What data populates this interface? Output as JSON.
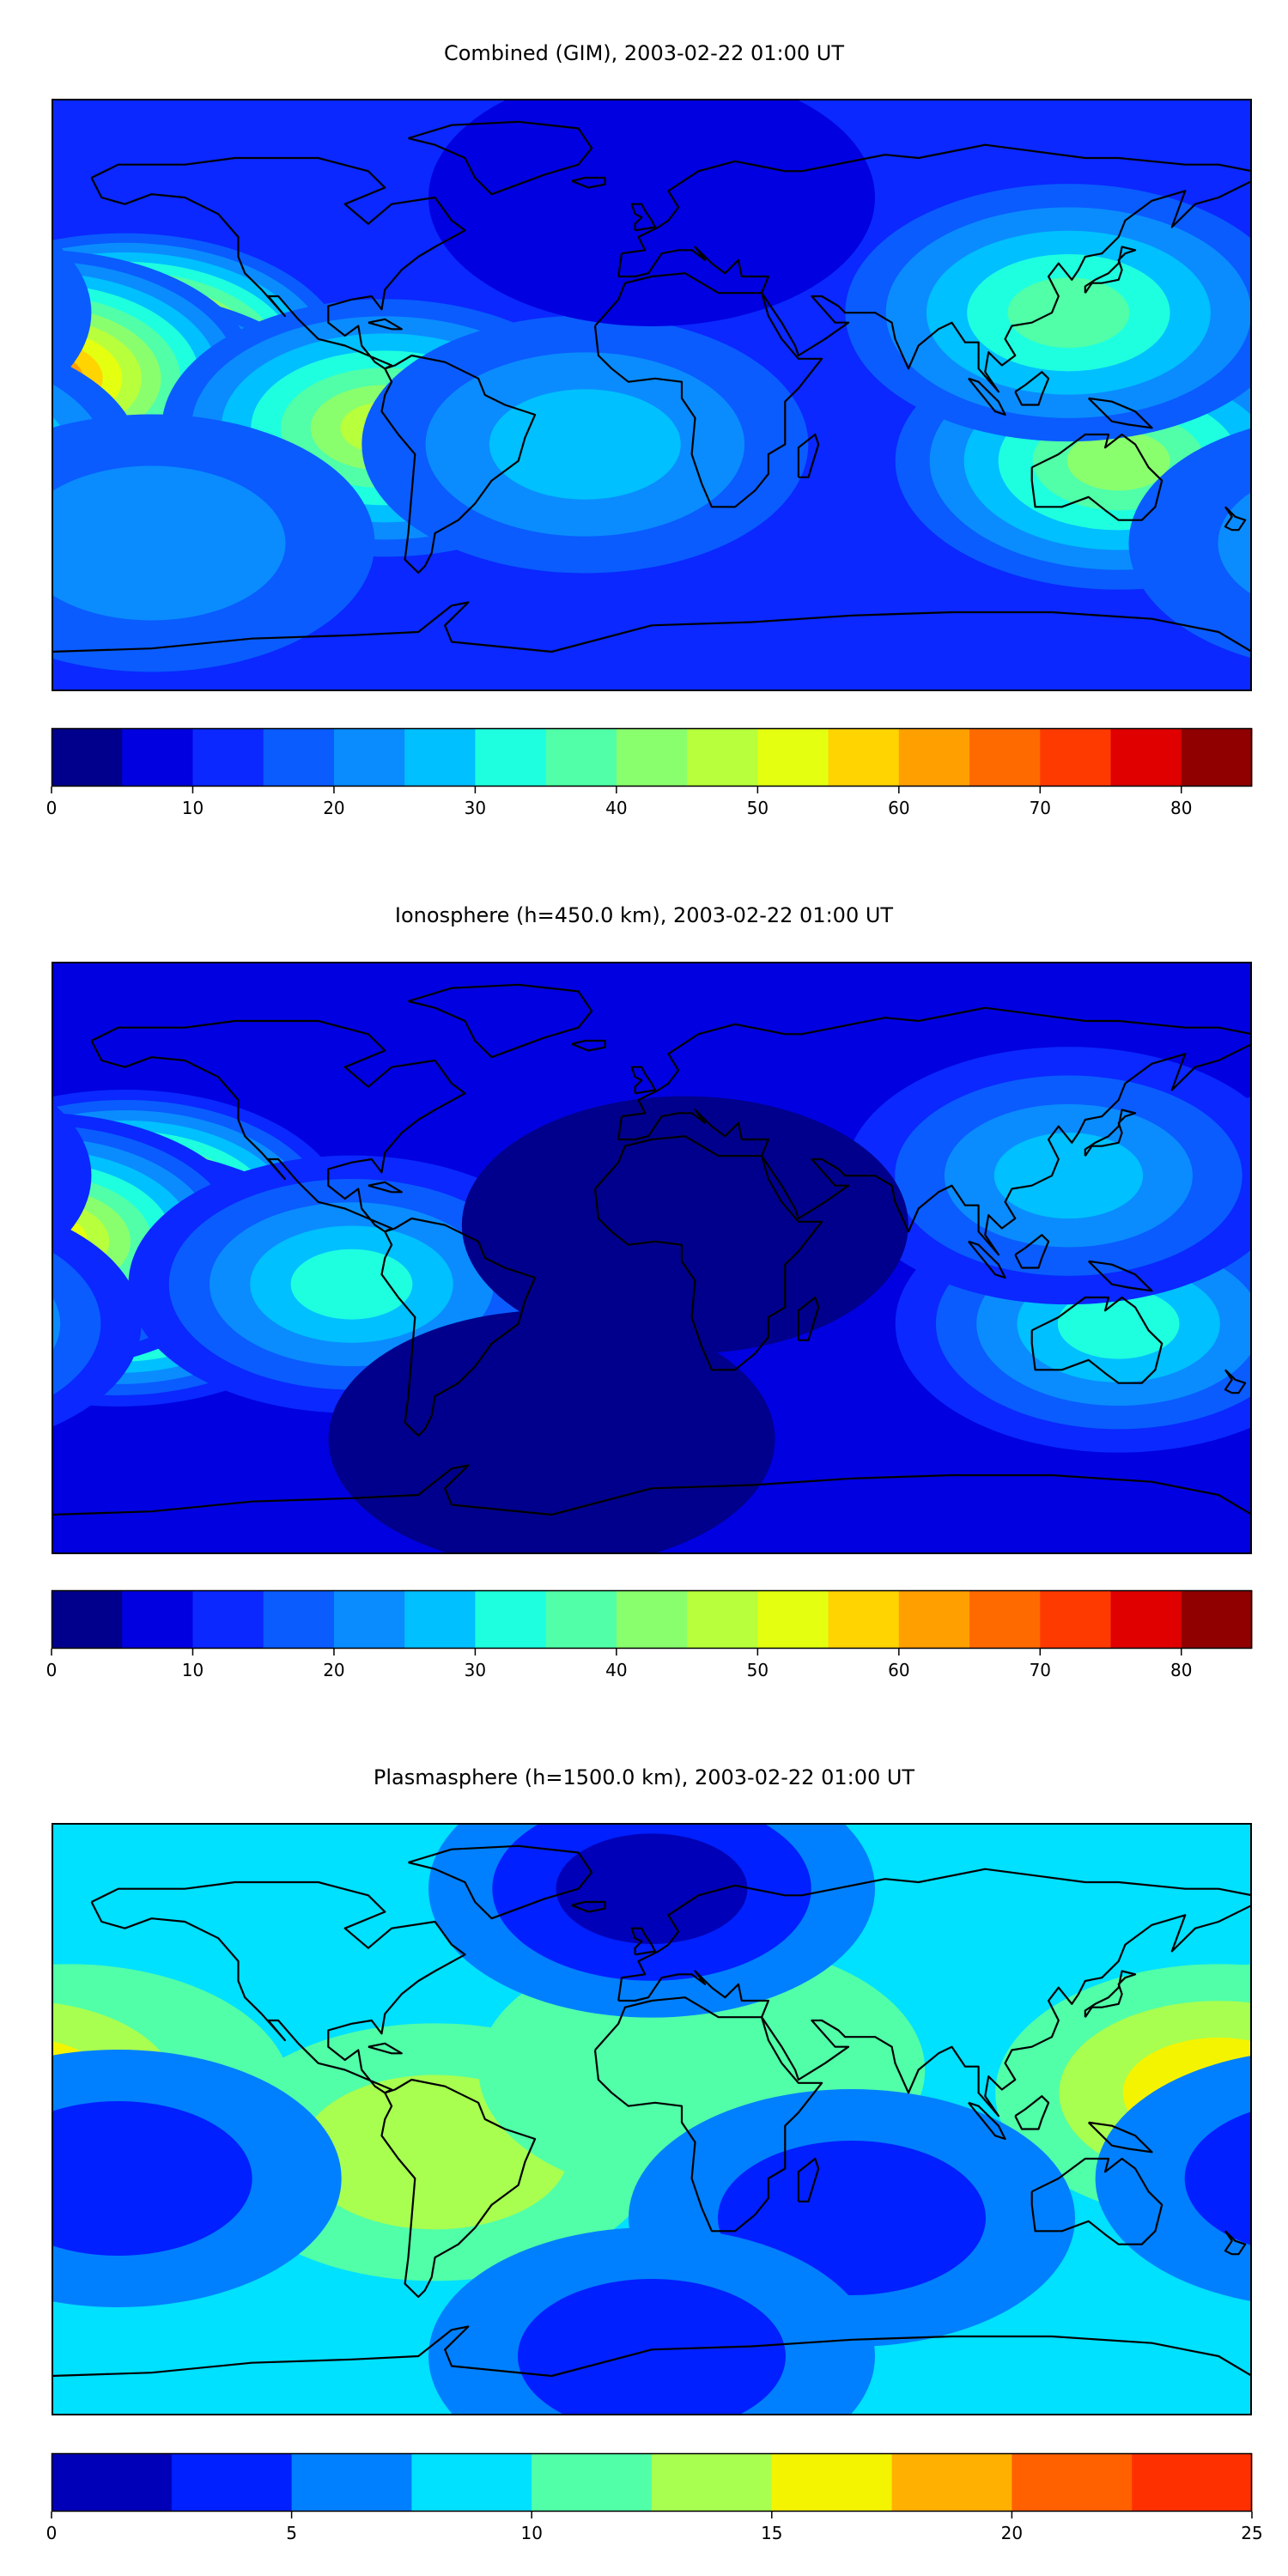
{
  "panels": [
    {
      "title": "Combined (GIM), 2003-02-22 01:00 UT",
      "colorbar": {
        "boundaries": [
          0,
          5,
          10,
          15,
          20,
          25,
          30,
          35,
          40,
          45,
          50,
          55,
          60,
          65,
          70,
          75,
          80,
          85
        ],
        "colors": [
          "#00008c",
          "#0000e0",
          "#0a28ff",
          "#0a5cff",
          "#0a8cff",
          "#00c0ff",
          "#1effe0",
          "#50ffa8",
          "#8aff6e",
          "#b8ff3c",
          "#e4ff10",
          "#ffd400",
          "#ffa000",
          "#ff6a00",
          "#ff3a00",
          "#e00000",
          "#900000"
        ],
        "ticks": [
          0,
          10,
          20,
          30,
          40,
          50,
          60,
          70,
          80
        ]
      },
      "base_color": "#0a28ff",
      "blobs": [
        {
          "lon": -158,
          "lat": 10,
          "value": 75
        },
        {
          "lon": -160,
          "lat": -8,
          "value": 70
        },
        {
          "lon": 175,
          "lat": 5,
          "value": 65
        },
        {
          "lon": -80,
          "lat": -10,
          "value": 45
        },
        {
          "lon": 140,
          "lat": -20,
          "value": 40
        },
        {
          "lon": 125,
          "lat": 25,
          "value": 35
        },
        {
          "lon": -20,
          "lat": -15,
          "value": 28
        },
        {
          "lon": -150,
          "lat": -45,
          "value": 22
        },
        {
          "lon": 0,
          "lat": 60,
          "value": 8
        }
      ]
    },
    {
      "title": "Ionosphere  (h=450.0 km), 2003-02-22 01:00 UT",
      "colorbar": {
        "boundaries": [
          0,
          5,
          10,
          15,
          20,
          25,
          30,
          35,
          40,
          45,
          50,
          55,
          60,
          65,
          70,
          75,
          80,
          85
        ],
        "colors": [
          "#00008c",
          "#0000e0",
          "#0a28ff",
          "#0a5cff",
          "#0a8cff",
          "#00c0ff",
          "#1effe0",
          "#50ffa8",
          "#8aff6e",
          "#b8ff3c",
          "#e4ff10",
          "#ffd400",
          "#ffa000",
          "#ff6a00",
          "#ff3a00",
          "#e00000",
          "#900000"
        ],
        "ticks": [
          0,
          10,
          20,
          30,
          40,
          50,
          60,
          70,
          80
        ]
      },
      "base_color": "#0000e0",
      "blobs": [
        {
          "lon": -158,
          "lat": 12,
          "value": 68
        },
        {
          "lon": -160,
          "lat": -6,
          "value": 62
        },
        {
          "lon": 175,
          "lat": 5,
          "value": 58
        },
        {
          "lon": -90,
          "lat": -8,
          "value": 32
        },
        {
          "lon": 140,
          "lat": -20,
          "value": 30
        },
        {
          "lon": 125,
          "lat": 25,
          "value": 28
        },
        {
          "lon": 10,
          "lat": 10,
          "value": 4
        },
        {
          "lon": -30,
          "lat": -55,
          "value": 4
        }
      ]
    },
    {
      "title": "Plasmasphere (h=1500.0 km), 2003-02-22 01:00 UT",
      "colorbar": {
        "boundaries": [
          0,
          2.5,
          5,
          7.5,
          10,
          12.5,
          15,
          17.5,
          20,
          22.5,
          25
        ],
        "colors": [
          "#0000b8",
          "#0020ff",
          "#0080ff",
          "#00e0ff",
          "#50ffa8",
          "#a8ff50",
          "#f4f400",
          "#ffb000",
          "#ff6000",
          "#ff3000"
        ],
        "ticks": [
          0,
          5,
          10,
          15,
          20,
          25
        ]
      },
      "base_color": "#00e0ff",
      "blobs": [
        {
          "lon": -175,
          "lat": 8,
          "value": 16
        },
        {
          "lon": 170,
          "lat": 8,
          "value": 16
        },
        {
          "lon": -65,
          "lat": -10,
          "value": 13
        },
        {
          "lon": 15,
          "lat": 15,
          "value": 11
        },
        {
          "lon": 60,
          "lat": -30,
          "value": 4
        },
        {
          "lon": -160,
          "lat": -18,
          "value": 4
        },
        {
          "lon": 0,
          "lat": 70,
          "value": 1
        },
        {
          "lon": 0,
          "lat": -72,
          "value": 4
        }
      ]
    }
  ]
}
